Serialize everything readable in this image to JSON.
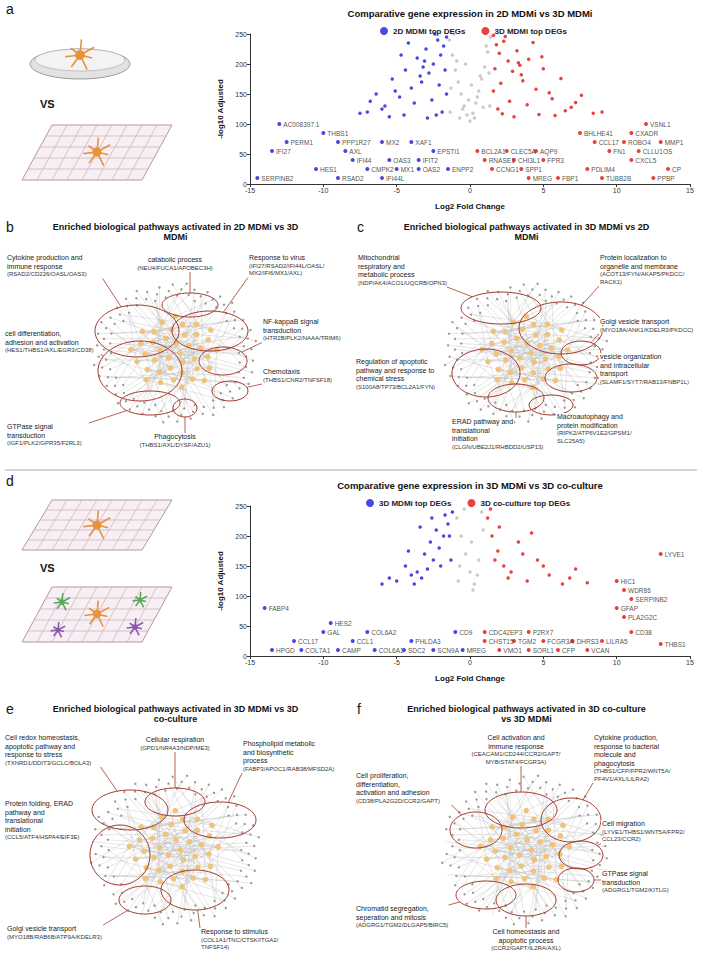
{
  "chart_data": [
    {
      "type": "scatter",
      "letter": "a",
      "title": "Comparative gene expression in 2D MDMi vs 3D MDMi",
      "comparison_label": "VS",
      "x_label": "Log2 Fold Change",
      "y_label": "-log10 Adjusted",
      "xlim": [
        -15,
        15
      ],
      "xticks": [
        -15,
        -10,
        -5,
        0,
        5,
        10,
        15
      ],
      "ylim": [
        0,
        250
      ],
      "yticks": [
        0,
        50,
        100,
        150,
        200,
        250
      ],
      "grid": false,
      "legend": "top",
      "series": [
        {
          "name": "2D MDMi top DEGs",
          "color": "#1a1adb",
          "x": [
            -1.6,
            -1.8,
            -2.0,
            -2.2,
            -2.5,
            -2.8,
            -3.0,
            -3.3,
            -3.6,
            -4.0,
            -4.4,
            -4.8,
            -5.3,
            -5.8,
            -6.4,
            -7.0,
            -1.7,
            -2.1,
            -2.6,
            -3.1,
            -3.8,
            -4.5,
            -5.1,
            -6.0,
            -1.9,
            -2.4,
            -2.9,
            -3.4,
            -4.2,
            -5.5,
            -6.8,
            -7.5,
            -1.6,
            -2.3,
            -3.2,
            -4.7
          ],
          "values": [
            245,
            230,
            215,
            240,
            200,
            185,
            225,
            170,
            210,
            160,
            190,
            145,
            175,
            130,
            150,
            120,
            190,
            165,
            140,
            205,
            135,
            115,
            155,
            125,
            120,
            250,
            110,
            180,
            235,
            112,
            138,
            118,
            150,
            115,
            195,
            215
          ],
          "gene_labels": [
            {
              "text": "AC008397.1",
              "x": -13,
              "y": 100
            },
            {
              "text": "THBS1",
              "x": -10,
              "y": 85
            },
            {
              "text": "PERM1",
              "x": -12.5,
              "y": 70
            },
            {
              "text": "PPP1R27",
              "x": -9,
              "y": 70
            },
            {
              "text": "MX2",
              "x": -6,
              "y": 70
            },
            {
              "text": "XAF1",
              "x": -4,
              "y": 70
            },
            {
              "text": "IFI27",
              "x": -13.5,
              "y": 55
            },
            {
              "text": "AXL",
              "x": -8.5,
              "y": 55
            },
            {
              "text": "EPSTI1",
              "x": -2.5,
              "y": 55
            },
            {
              "text": "IFI44",
              "x": -8,
              "y": 40
            },
            {
              "text": "OAS3",
              "x": -5.5,
              "y": 40
            },
            {
              "text": "IFIT2",
              "x": -3.5,
              "y": 40
            },
            {
              "text": "HES1",
              "x": -10.5,
              "y": 25
            },
            {
              "text": "CMPK2",
              "x": -7,
              "y": 25
            },
            {
              "text": "MX1",
              "x": -5,
              "y": 25
            },
            {
              "text": "OAS2",
              "x": -3.5,
              "y": 25
            },
            {
              "text": "ENPP2",
              "x": -1.5,
              "y": 25
            },
            {
              "text": "SERPINB2",
              "x": -14.5,
              "y": 10
            },
            {
              "text": "RSAD2",
              "x": -9,
              "y": 10
            },
            {
              "text": "IFI44L",
              "x": -6,
              "y": 10
            }
          ]
        },
        {
          "name": "3D MDMi top DEGs",
          "color": "#e3120b",
          "x": [
            1.6,
            1.8,
            2.0,
            2.3,
            2.6,
            2.9,
            3.2,
            3.6,
            4.0,
            4.5,
            5.0,
            5.6,
            6.2,
            6.9,
            7.6,
            8.4,
            1.7,
            2.1,
            2.7,
            3.3,
            3.9,
            4.7,
            5.4,
            6.5,
            1.9,
            2.4,
            3.0,
            3.5,
            4.3,
            5.8,
            7.2,
            9.0,
            1.6,
            2.2,
            3.4,
            4.9
          ],
          "values": [
            248,
            232,
            218,
            238,
            205,
            188,
            222,
            172,
            208,
            158,
            192,
            142,
            176,
            128,
            148,
            118,
            192,
            168,
            138,
            202,
            132,
            116,
            152,
            122,
            125,
            246,
            112,
            182,
            236,
            114,
            136,
            120,
            155,
            117,
            198,
            212
          ],
          "gene_labels": [
            {
              "text": "VSNL1",
              "x": 12,
              "y": 100
            },
            {
              "text": "BHLHE41",
              "x": 7.5,
              "y": 85
            },
            {
              "text": "CXADR",
              "x": 11,
              "y": 85
            },
            {
              "text": "CCL17",
              "x": 8.5,
              "y": 70
            },
            {
              "text": "ROBO4",
              "x": 10.5,
              "y": 70
            },
            {
              "text": "MMP1",
              "x": 13,
              "y": 70
            },
            {
              "text": "BCL2A1",
              "x": 0.5,
              "y": 55
            },
            {
              "text": "CLEC5A",
              "x": 2.5,
              "y": 55
            },
            {
              "text": "AQP9",
              "x": 4.5,
              "y": 55
            },
            {
              "text": "FN1",
              "x": 9.5,
              "y": 55
            },
            {
              "text": "CLLU1OS",
              "x": 11.5,
              "y": 55
            },
            {
              "text": "RNASE1",
              "x": 1,
              "y": 40
            },
            {
              "text": "CHI3L1",
              "x": 3,
              "y": 40
            },
            {
              "text": "FPR3",
              "x": 5,
              "y": 40
            },
            {
              "text": "CXCL5",
              "x": 11,
              "y": 40
            },
            {
              "text": "CCNG1",
              "x": 1.5,
              "y": 25
            },
            {
              "text": "SPP1",
              "x": 3.5,
              "y": 25
            },
            {
              "text": "PDLIM4",
              "x": 8,
              "y": 25
            },
            {
              "text": "CP",
              "x": 13.5,
              "y": 25
            },
            {
              "text": "MREG",
              "x": 4,
              "y": 10
            },
            {
              "text": "FBP1",
              "x": 6,
              "y": 10
            },
            {
              "text": "TUBB2B",
              "x": 9,
              "y": 10
            },
            {
              "text": "PPBP",
              "x": 12.5,
              "y": 10
            }
          ]
        }
      ],
      "background_points": {
        "color": "#bdbdbd",
        "x": [
          -1.4,
          -1.2,
          -1.0,
          -0.8,
          -0.6,
          -0.4,
          -0.2,
          0,
          0.2,
          0.4,
          0.6,
          0.8,
          1.0,
          1.2,
          1.4,
          -1.3,
          -0.9,
          -0.5,
          -0.1,
          0.3,
          0.7,
          1.1,
          -1.1,
          -0.7,
          -0.3,
          0.1,
          0.5,
          0.9,
          1.3,
          -1.35,
          1.35
        ],
        "values": [
          240,
          215,
          190,
          170,
          150,
          130,
          115,
          105,
          118,
          135,
          155,
          175,
          195,
          220,
          245,
          160,
          205,
          125,
          140,
          110,
          180,
          230,
          250,
          110,
          200,
          165,
          145,
          128,
          185,
          120,
          130
        ]
      }
    },
    {
      "type": "scatter",
      "letter": "d",
      "title": "Comparative gene expression in 3D MDMi vs 3D co-culture",
      "comparison_label": "VS",
      "x_label": "Log2 Fold Change",
      "y_label": "-log10 Adjusted",
      "xlim": [
        -15,
        15
      ],
      "xticks": [
        -15,
        -10,
        -5,
        0,
        5,
        10,
        15
      ],
      "ylim": [
        0,
        250
      ],
      "yticks": [
        0,
        50,
        100,
        150,
        200,
        250
      ],
      "grid": false,
      "legend": "top",
      "series": [
        {
          "name": "3D MDMi top DEGs",
          "color": "#1a1adb",
          "x": [
            -1.2,
            -1.5,
            -1.8,
            -2.1,
            -2.5,
            -2.9,
            -3.3,
            -3.8,
            -4.4,
            -5.0,
            -1.3,
            -1.7,
            -2.3,
            -2.7,
            -3.1,
            -3.6,
            -4.2,
            -5.5,
            -1.4,
            -2.0,
            -2.6,
            -3.4,
            -4.0,
            -6.0
          ],
          "values": [
            240,
            220,
            200,
            180,
            160,
            145,
            130,
            120,
            150,
            125,
            160,
            235,
            210,
            190,
            170,
            140,
            175,
            130,
            200,
            150,
            230,
            215,
            135,
            120
          ],
          "gene_labels": [
            {
              "text": "FABP4",
              "x": -14,
              "y": 80
            },
            {
              "text": "HES2",
              "x": -9.5,
              "y": 55
            },
            {
              "text": "GAL",
              "x": -10,
              "y": 40
            },
            {
              "text": "COL6A2",
              "x": -7,
              "y": 40
            },
            {
              "text": "CD9",
              "x": -1,
              "y": 40
            },
            {
              "text": "CCL17",
              "x": -12,
              "y": 25
            },
            {
              "text": "CCL1",
              "x": -8,
              "y": 25
            },
            {
              "text": "PHLDA3",
              "x": -4,
              "y": 25
            },
            {
              "text": "HPGD",
              "x": -13.5,
              "y": 10
            },
            {
              "text": "COL7A1",
              "x": -11.5,
              "y": 10
            },
            {
              "text": "CAMP",
              "x": -9,
              "y": 10
            },
            {
              "text": "COL6A1",
              "x": -6.5,
              "y": 10
            },
            {
              "text": "SDC2",
              "x": -4.5,
              "y": 10
            },
            {
              "text": "SCN9A",
              "x": -2.5,
              "y": 10
            },
            {
              "text": "MREG",
              "x": -0.5,
              "y": 10
            }
          ]
        },
        {
          "name": "3D co-culture top DEGs",
          "color": "#e3120b",
          "x": [
            1.2,
            1.5,
            1.9,
            2.3,
            2.8,
            3.3,
            3.9,
            4.6,
            5.4,
            6.3,
            7.2,
            1.4,
            2.0,
            2.6,
            3.6,
            4.2,
            5.0,
            6.8,
            8.0,
            1.7
          ],
          "values": [
            230,
            200,
            175,
            150,
            140,
            190,
            125,
            160,
            135,
            120,
            145,
            245,
            215,
            130,
            170,
            205,
            150,
            130,
            122,
            160
          ],
          "gene_labels": [
            {
              "text": "LYVE1",
              "x": 13,
              "y": 170
            },
            {
              "text": "HIC1",
              "x": 10,
              "y": 125
            },
            {
              "text": "WDR86",
              "x": 10.5,
              "y": 110
            },
            {
              "text": "SERPINB2",
              "x": 11,
              "y": 95
            },
            {
              "text": "GFAP",
              "x": 10,
              "y": 80
            },
            {
              "text": "PLA2G2C",
              "x": 10.5,
              "y": 65
            },
            {
              "text": "CD38",
              "x": 11,
              "y": 40
            },
            {
              "text": "THBS1",
              "x": 13,
              "y": 20
            },
            {
              "text": "CDC42EP3",
              "x": 1,
              "y": 40
            },
            {
              "text": "P2RX7",
              "x": 4,
              "y": 40
            },
            {
              "text": "CHST15",
              "x": 1,
              "y": 25
            },
            {
              "text": "TGM2",
              "x": 3,
              "y": 25
            },
            {
              "text": "FCGR3A",
              "x": 5,
              "y": 25
            },
            {
              "text": "DHRS3",
              "x": 7,
              "y": 25
            },
            {
              "text": "LILRA5",
              "x": 9,
              "y": 25
            },
            {
              "text": "VMO1",
              "x": 2,
              "y": 10
            },
            {
              "text": "SORL1",
              "x": 4,
              "y": 10
            },
            {
              "text": "CFP",
              "x": 6,
              "y": 10
            },
            {
              "text": "VCAN",
              "x": 8,
              "y": 10
            }
          ]
        }
      ],
      "background_points": {
        "color": "#bdbdbd",
        "x": [
          -0.9,
          -0.6,
          -0.3,
          0,
          0.3,
          0.6,
          0.9,
          -0.8,
          -0.4,
          0.1,
          0.5,
          0.8,
          -0.7,
          0.2
        ],
        "values": [
          230,
          200,
          170,
          140,
          120,
          160,
          210,
          125,
          245,
          190,
          135,
          240,
          150,
          110
        ]
      }
    }
  ],
  "diagrams": [
    {
      "letter": "b",
      "title": "Enriched biological pathways activated in 2D MDMi vs 3D MDMi",
      "annotations": [
        {
          "label": "catabolic process",
          "genes": "(NEU4/FUCA1/APOBEC3H)"
        },
        {
          "label": "Cytokine production and immune response",
          "genes": "(RSAD2/CD226/OASL/OAS3)"
        },
        {
          "label": "Response to virus",
          "genes": "(IFI27/RSAD2/IFI44L/OASL/MX2/IFI6/MX1/AXL)"
        },
        {
          "label": "cell differentiation, adhesion and activation",
          "genes": "(HES1/THBS1/AXL/EGR3/CD38)"
        },
        {
          "label": "NF-kappaB signal transduction",
          "genes": "(HTR2B/PLK2/NAAA/TRIM6)"
        },
        {
          "label": "Chemotaxis",
          "genes": "(THBS1/CNR2/TNFSF18)"
        },
        {
          "label": "GTPase signal transduction",
          "genes": "(IGF1/PLK2/GPR35/F2RL3)"
        },
        {
          "label": "Phagocytosis",
          "genes": "(THBS1/AXL/DYSF/AZU1)"
        }
      ]
    },
    {
      "letter": "c",
      "title": "Enriched biological pathways activated in 3D MDMi vs 2D MDMi",
      "annotations": [
        {
          "label": "Mitochondrial respiratory and metabolic process",
          "genes": "(NDP/AK4/ACO1/UQCRB/OPN3)"
        },
        {
          "label": "Protein localization to organelle and membrane",
          "genes": "(ACOT13/FYN/AKAP5/PKDCC/RACK1)"
        },
        {
          "label": "Golgi vesicle transport",
          "genes": "(MYO18A/ANK1/KDELR3/PKDCC)"
        },
        {
          "label": "vesicle organization and intracellular transport",
          "genes": "(SLAMF1/SYT7/RAB13/FNBP1L)"
        },
        {
          "label": "Regulation of apoptotic pathway and response to chemical stress",
          "genes": "(S100A8/TP73/BCL2A1/FYN)"
        },
        {
          "label": "ERAD pathway and translational initiation",
          "genes": "(CLGN/UBE2J1/RHBDD2/USP13)"
        },
        {
          "label": "Macroautophagy and protein modification",
          "genes": "(RIPK2/ATP6V1E2/GPSM1/SLC25A5)"
        }
      ]
    },
    {
      "letter": "e",
      "title": "Enriched biological pathways activated in 3D MDMi vs 3D co-culture",
      "annotations": [
        {
          "label": "Cell redox homeostasis, apoptotic pathway and response to stress",
          "genes": "(TXNRD1/DDIT3/GCLC/BOLA3)"
        },
        {
          "label": "Cellular respiration",
          "genes": "(GPD1/NR4A3/NDP/ME3)"
        },
        {
          "label": "Phospholipid metabolic and biosynthetic process",
          "genes": "(FABP3/APOC1/RAB38/MFSD2A)"
        },
        {
          "label": "Protein folding, ERAD pathway and translational initiation",
          "genes": "(CCL5/ATF4/HSPA4/EIF3E)"
        },
        {
          "label": "Golgi vesicle transport",
          "genes": "(MYO18B/RAB6B/ATP9A/KDELR3)"
        },
        {
          "label": "Response to stimulus",
          "genes": "(COL1A1/TNC/CTSK/ITGA2/TNFSF14)"
        }
      ]
    },
    {
      "letter": "f",
      "title": "Enriched biological pathways activated in 3D co-culture vs 3D MDMi",
      "annotations": [
        {
          "label": "Cell activation and immune response",
          "genes": "(CEACAM1/CD244/CCR2/GAPT/MYB/STAT4/FCGR3A)"
        },
        {
          "label": "Cytokine production, response to bacterial molecule and phagocytosis",
          "genes": "(THBS1/CFP/FPR2/WNT5A/PF4V1/AXL/LILRA2)"
        },
        {
          "label": "Cell proliferation, differentiation, activation and adhesion",
          "genes": "(CD38/PLA2G2D/CCR2/GAPT)"
        },
        {
          "label": "Cell migration",
          "genes": "(LYVE1/THBS1/WNT5A/FPR2/CCL23/CCR2)"
        },
        {
          "label": "GTPase signal transduction",
          "genes": "(ADGRG1/TGM2/KITLG)"
        },
        {
          "label": "Cell homeostasis and apoptotic process",
          "genes": "(CCR2/GAPT/IL2RA/AXL)"
        },
        {
          "label": "Chromatid segregation, seperation and mitosis",
          "genes": "(ADGRG1/TGM2/DLGAP5/BIRC5)"
        }
      ]
    }
  ]
}
